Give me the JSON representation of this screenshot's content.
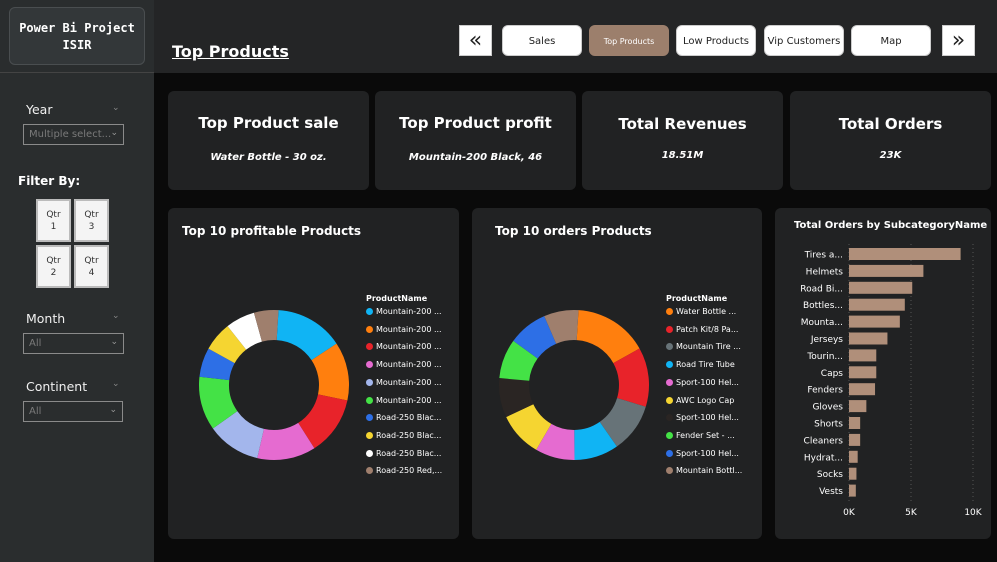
{
  "sidebar": {
    "title_line1": "Power Bi Project",
    "title_line2": "ISIR",
    "year": {
      "label": "Year",
      "value": "Multiple select..."
    },
    "filter_by": "Filter By:",
    "quarters": [
      {
        "l1": "Qtr",
        "l2": "1"
      },
      {
        "l1": "Qtr",
        "l2": "3"
      },
      {
        "l1": "Qtr",
        "l2": "2"
      },
      {
        "l1": "Qtr",
        "l2": "4"
      }
    ],
    "month": {
      "label": "Month",
      "value": "All"
    },
    "continent": {
      "label": "Continent",
      "value": "All"
    }
  },
  "header": {
    "page_title": "Top Products",
    "nav": [
      "Sales",
      "Top Products",
      "Low Products",
      "Vip Customers",
      "Map"
    ],
    "active": "Top Products",
    "prev_icon": "«",
    "next_icon": "»"
  },
  "kpis": [
    {
      "title": "Top Product sale",
      "value": "Water Bottle - 30 oz."
    },
    {
      "title": "Top Product profit",
      "value": "Mountain-200 Black, 46"
    },
    {
      "title": "Total Revenues",
      "value": "18.51M"
    },
    {
      "title": "Total Orders",
      "value": "23K"
    }
  ],
  "chart_data": [
    {
      "type": "pie",
      "title": "Top 10 profitable Products",
      "legend_title": "ProductName",
      "legend_position": "right",
      "categories": [
        "Mountain-200 ...",
        "Mountain-200 ...",
        "Mountain-200 ...",
        "Mountain-200 ...",
        "Mountain-200 ...",
        "Mountain-200 ...",
        "Road-250 Blac...",
        "Road-250 Blac...",
        "Road-250 Blac...",
        "Road-250 Red,..."
      ],
      "values": [
        14,
        12,
        12,
        12,
        11,
        11,
        6,
        6,
        6,
        5
      ],
      "colors": [
        "#10b4f4",
        "#ff7f0e",
        "#e8232a",
        "#e56bd0",
        "#a3b6ec",
        "#44e246",
        "#2d6fe6",
        "#f5d531",
        "#ffffff",
        "#9f7f6d"
      ]
    },
    {
      "type": "pie",
      "title": "Top 10 orders Products",
      "legend_title": "ProductName",
      "legend_position": "right",
      "categories": [
        "Water Bottle ...",
        "Patch Kit/8 Pa...",
        "Mountain Tire ...",
        "Road Tire Tube",
        "Sport-100 Hel...",
        "AWC Logo Cap",
        "Sport-100 Hel...",
        "Fender Set - ...",
        "Sport-100 Hel...",
        "Mountain Bottl..."
      ],
      "values": [
        15,
        12,
        10,
        9,
        8,
        9,
        8,
        8,
        8,
        7
      ],
      "colors": [
        "#ff7f0e",
        "#e8232a",
        "#677378",
        "#10b4f4",
        "#e56bd0",
        "#f5d531",
        "#2a2523",
        "#44e246",
        "#2d6fe6",
        "#9f7f6d"
      ]
    },
    {
      "type": "bar",
      "orientation": "horizontal",
      "title": "Total Orders by SubcategoryName",
      "categories": [
        "Tires a...",
        "Helmets",
        "Road Bi...",
        "Bottles...",
        "Mounta...",
        "Jerseys",
        "Tourin...",
        "Caps",
        "Fenders",
        "Gloves",
        "Shorts",
        "Cleaners",
        "Hydrat...",
        "Socks",
        "Vests"
      ],
      "values": [
        9000,
        6000,
        5100,
        4500,
        4100,
        3100,
        2200,
        2200,
        2100,
        1400,
        900,
        900,
        700,
        600,
        550
      ],
      "xticks": [
        "0K",
        "5K",
        "10K"
      ],
      "xlim": [
        0,
        10000
      ],
      "bar_color": "#b08f7a",
      "grid": true
    }
  ]
}
